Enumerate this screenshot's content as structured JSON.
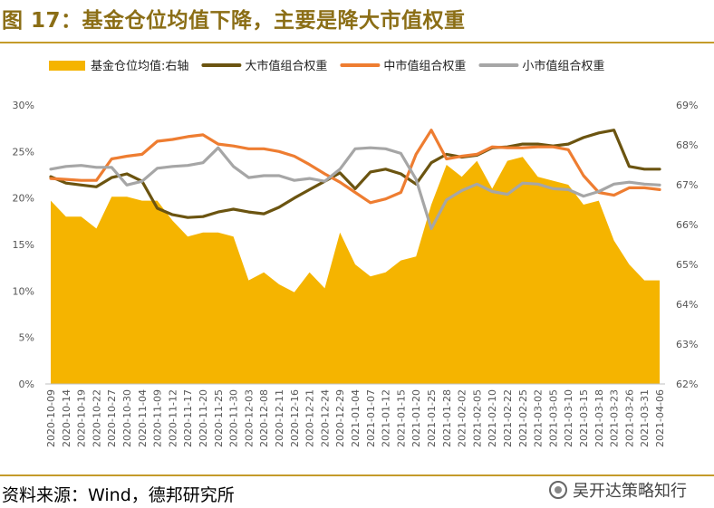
{
  "title": "图 17：基金仓位均值下降，主要是降大市值权重",
  "source": "资料来源：Wind，德邦研究所",
  "watermark": "吴开达策略知行",
  "chart_data": {
    "type": "area+line",
    "legend_position": "top",
    "x": [
      "2020-10-09",
      "2020-10-14",
      "2020-10-19",
      "2020-10-22",
      "2020-10-27",
      "2020-10-30",
      "2020-11-04",
      "2020-11-09",
      "2020-11-12",
      "2020-11-17",
      "2020-11-20",
      "2020-11-25",
      "2020-11-30",
      "2020-12-03",
      "2020-12-08",
      "2020-12-11",
      "2020-12-16",
      "2020-12-21",
      "2020-12-24",
      "2020-12-29",
      "2021-01-04",
      "2021-01-07",
      "2021-01-12",
      "2021-01-15",
      "2021-01-20",
      "2021-01-25",
      "2021-01-28",
      "2021-02-02",
      "2021-02-05",
      "2021-02-10",
      "2021-02-22",
      "2021-02-25",
      "2021-03-02",
      "2021-03-05",
      "2021-03-10",
      "2021-03-15",
      "2021-03-18",
      "2021-03-23",
      "2021-03-26",
      "2021-03-31",
      "2021-04-06"
    ],
    "x_ticks": [
      "2020-10-09",
      "2020-10-14",
      "2020-10-19",
      "2020-10-22",
      "2020-10-27",
      "2020-10-30",
      "2020-11-04",
      "2020-11-09",
      "2020-11-12",
      "2020-11-17",
      "2020-11-20",
      "2020-11-25",
      "2020-11-30",
      "2020-12-03",
      "2020-12-08",
      "2020-12-11",
      "2020-12-16",
      "2020-12-21",
      "2020-12-24",
      "2020-12-29",
      "2021-01-04",
      "2021-01-07",
      "2021-01-12",
      "2021-01-15",
      "2021-01-20",
      "2021-01-25",
      "2021-01-28",
      "2021-02-02",
      "2021-02-05",
      "2021-02-10",
      "2021-02-22",
      "2021-02-25",
      "2021-03-02",
      "2021-03-05",
      "2021-03-10",
      "2021-03-15",
      "2021-03-18",
      "2021-03-23",
      "2021-03-26",
      "2021-03-31",
      "2021-04-06"
    ],
    "left_axis": {
      "ylim": [
        0,
        30
      ],
      "ticks": [
        "0%",
        "5%",
        "10%",
        "15%",
        "20%",
        "25%",
        "30%"
      ]
    },
    "right_axis": {
      "ylim": [
        62,
        69
      ],
      "ticks": [
        "62%",
        "63%",
        "64%",
        "65%",
        "66%",
        "67%",
        "68%",
        "69%"
      ]
    },
    "grid": false,
    "series": [
      {
        "name": "基金仓位均值:右轴",
        "type": "area",
        "axis": "right",
        "color": "#f5b400",
        "values": [
          66.6,
          66.2,
          66.2,
          65.9,
          66.7,
          66.7,
          66.6,
          66.6,
          66.1,
          65.7,
          65.8,
          65.8,
          65.7,
          64.6,
          64.8,
          64.5,
          64.3,
          64.8,
          64.4,
          65.8,
          65.0,
          64.7,
          64.8,
          65.1,
          65.2,
          66.5,
          67.5,
          67.2,
          67.6,
          66.9,
          67.6,
          67.7,
          67.2,
          67.1,
          67.0,
          66.5,
          66.6,
          65.6,
          65.0,
          64.6,
          64.6
        ]
      },
      {
        "name": "大市值组合权重",
        "type": "line",
        "axis": "left",
        "color": "#6b5410",
        "values": [
          22.3,
          21.6,
          21.4,
          21.2,
          22.2,
          22.6,
          21.8,
          18.9,
          18.2,
          17.9,
          18.0,
          18.5,
          18.8,
          18.5,
          18.3,
          19.0,
          20.0,
          20.9,
          21.8,
          22.7,
          21.0,
          22.8,
          23.1,
          22.6,
          21.5,
          23.8,
          24.7,
          24.4,
          24.6,
          25.4,
          25.5,
          25.8,
          25.8,
          25.6,
          25.8,
          26.5,
          27.0,
          27.3,
          23.4,
          23.1,
          23.1
        ]
      },
      {
        "name": "中市值组合权重",
        "type": "line",
        "axis": "left",
        "color": "#ee7d31",
        "values": [
          22.1,
          22.0,
          21.9,
          21.9,
          24.2,
          24.5,
          24.7,
          26.1,
          26.3,
          26.6,
          26.8,
          25.8,
          25.6,
          25.3,
          25.3,
          25.0,
          24.5,
          23.6,
          22.6,
          21.7,
          20.6,
          19.5,
          19.9,
          20.6,
          24.7,
          27.3,
          24.2,
          24.5,
          24.7,
          25.5,
          25.4,
          25.4,
          25.5,
          25.5,
          25.2,
          22.4,
          20.6,
          20.3,
          21.1,
          21.1,
          20.9
        ]
      },
      {
        "name": "小市值组合权重",
        "type": "line",
        "axis": "left",
        "color": "#a6a6a6",
        "values": [
          23.1,
          23.4,
          23.5,
          23.3,
          23.3,
          21.4,
          21.8,
          23.2,
          23.4,
          23.5,
          23.8,
          25.4,
          23.4,
          22.2,
          22.4,
          22.4,
          21.9,
          22.1,
          21.8,
          23.1,
          25.3,
          25.4,
          25.3,
          24.8,
          22.0,
          16.7,
          19.8,
          20.8,
          21.5,
          20.7,
          20.4,
          21.6,
          21.5,
          21.0,
          20.9,
          20.2,
          20.7,
          21.5,
          21.7,
          21.5,
          21.4
        ]
      }
    ]
  }
}
